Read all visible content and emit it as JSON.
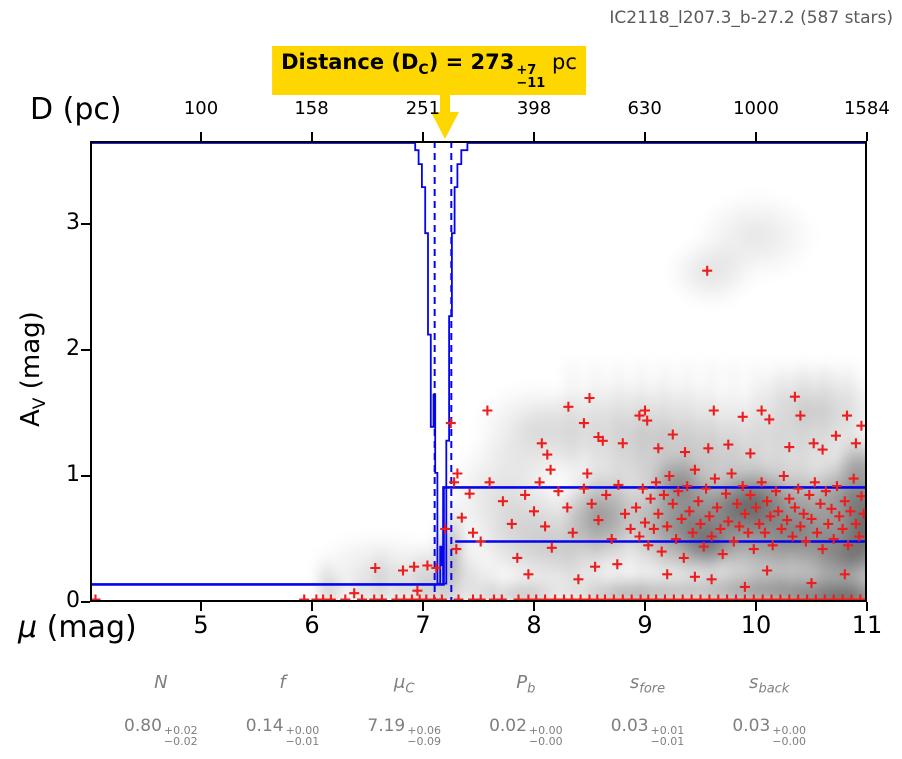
{
  "title": "IC2118_l207.3_b-27.2 (587 stars)",
  "annotation": {
    "prefix": "Distance (D",
    "var_sub": "C",
    "mid": ") = 273",
    "err_plus": "+7",
    "err_minus": "−11",
    "unit": " pc"
  },
  "axes": {
    "top_label": "D (pc)",
    "bottom_label_main": "μ",
    "bottom_label_rest": " (mag)",
    "left_label_main": "A",
    "left_label_sub": "V",
    "left_label_rest": " (mag)"
  },
  "params": [
    {
      "main": "N",
      "sub": "",
      "value": "0.80",
      "plus": "+0.02",
      "minus": "−0.02"
    },
    {
      "main": "f",
      "sub": "",
      "value": "0.14",
      "plus": "+0.00",
      "minus": "−0.01"
    },
    {
      "main": "μ",
      "sub": "C",
      "value": "7.19",
      "plus": "+0.06",
      "minus": "−0.09"
    },
    {
      "main": "P",
      "sub": "b",
      "value": "0.02",
      "plus": "+0.00",
      "minus": "−0.00"
    },
    {
      "main": "s",
      "sub": "fore",
      "value": "0.03",
      "plus": "+0.01",
      "minus": "−0.01"
    },
    {
      "main": "s",
      "sub": "back",
      "value": "0.03",
      "plus": "+0.00",
      "minus": "−0.00"
    }
  ],
  "chart_data": {
    "type": "scatter",
    "title": "IC2118_l207.3_b-27.2 (587 stars)",
    "xlabel": "μ (mag)",
    "ylabel": "A_V (mag)",
    "x2label": "D (pc)",
    "xlim": [
      4,
      11
    ],
    "ylim": [
      0,
      3.66
    ],
    "grid": false,
    "colors": {
      "marker": "#ee1d1d",
      "model": "#0404ee",
      "accent": "#ffd700",
      "text_gray": "#7f7f7f"
    },
    "x_ticks": [
      {
        "label": "5",
        "mu": 5
      },
      {
        "label": "6",
        "mu": 6
      },
      {
        "label": "7",
        "mu": 7
      },
      {
        "label": "8",
        "mu": 8
      },
      {
        "label": "9",
        "mu": 9
      },
      {
        "label": "10",
        "mu": 10
      },
      {
        "label": "11",
        "mu": 11
      }
    ],
    "x2_ticks": [
      {
        "label": "100",
        "mu": 5.0
      },
      {
        "label": "158",
        "mu": 5.996
      },
      {
        "label": "251",
        "mu": 6.999
      },
      {
        "label": "398",
        "mu": 8.0
      },
      {
        "label": "630",
        "mu": 8.997
      },
      {
        "label": "1000",
        "mu": 10.0
      },
      {
        "label": "1584",
        "mu": 10.999
      }
    ],
    "y_ticks": [
      {
        "label": "0",
        "av": 0
      },
      {
        "label": "1",
        "av": 1
      },
      {
        "label": "2",
        "av": 2
      },
      {
        "label": "3",
        "av": 3
      }
    ],
    "distance_pc": {
      "value": 273,
      "plus": 7,
      "minus": 11
    },
    "model": {
      "fore_av": 0.14,
      "mu_c": 7.185,
      "back_av_upper": 0.91,
      "back_av_lower": 0.48,
      "lower_start_mu": 7.29
    },
    "dashed_mu": [
      7.105,
      7.255
    ],
    "posterior": {
      "note": "posterior of mu_C drawn downward from top axis; depth = fraction of plot height",
      "bins": [
        [
          6.93,
          0.02
        ],
        [
          6.96,
          0.05
        ],
        [
          6.99,
          0.1
        ],
        [
          7.02,
          0.2
        ],
        [
          7.045,
          0.42
        ],
        [
          7.07,
          0.62
        ],
        [
          7.095,
          0.55
        ],
        [
          7.11,
          0.72
        ],
        [
          7.13,
          0.96
        ],
        [
          7.155,
          0.88
        ],
        [
          7.17,
          0.92
        ],
        [
          7.185,
          0.96
        ],
        [
          7.21,
          0.65
        ],
        [
          7.235,
          0.38
        ],
        [
          7.26,
          0.2
        ],
        [
          7.285,
          0.1
        ],
        [
          7.31,
          0.05
        ],
        [
          7.345,
          0.02
        ]
      ],
      "end_mu": 7.4
    },
    "scatter": {
      "name": "stars",
      "marker": "+",
      "rug_av": 0.02,
      "rug_mu": [
        4.05,
        5.93,
        6.04,
        6.1,
        6.17,
        6.3,
        6.45,
        6.56,
        6.63,
        6.76,
        6.83,
        6.9,
        6.97,
        7.03,
        7.1,
        7.17,
        7.32,
        7.45,
        7.52,
        7.64,
        7.71,
        7.86,
        7.95,
        8.02,
        8.1,
        8.19,
        8.27,
        8.34,
        8.42,
        8.5,
        8.57,
        8.64,
        8.72,
        8.8,
        8.88,
        8.96,
        9.03,
        9.1,
        9.18,
        9.26,
        9.34,
        9.42,
        9.5,
        9.58,
        9.66,
        9.74,
        9.82,
        9.9,
        9.98,
        10.06,
        10.14,
        10.22,
        10.3,
        10.38,
        10.46,
        10.54,
        10.62,
        10.7,
        10.78,
        10.86,
        10.94
      ],
      "points": [
        [
          6.57,
          0.27
        ],
        [
          6.82,
          0.25
        ],
        [
          7.04,
          0.29
        ],
        [
          6.92,
          0.28
        ],
        [
          7.12,
          0.27
        ],
        [
          6.38,
          0.07
        ],
        [
          6.95,
          0.09
        ],
        [
          7.2,
          0.58
        ],
        [
          7.28,
          0.95
        ],
        [
          7.3,
          0.42
        ],
        [
          7.35,
          0.67
        ],
        [
          7.42,
          0.86
        ],
        [
          7.45,
          0.55
        ],
        [
          7.25,
          1.42
        ],
        [
          7.31,
          1.02
        ],
        [
          7.52,
          0.48
        ],
        [
          7.58,
          1.52
        ],
        [
          7.6,
          0.95
        ],
        [
          7.72,
          0.8
        ],
        [
          7.8,
          0.62
        ],
        [
          7.85,
          0.35
        ],
        [
          7.92,
          0.85
        ],
        [
          7.95,
          0.22
        ],
        [
          8.0,
          0.72
        ],
        [
          8.05,
          0.95
        ],
        [
          8.07,
          1.26
        ],
        [
          8.1,
          0.6
        ],
        [
          8.12,
          1.17
        ],
        [
          8.15,
          1.05
        ],
        [
          8.16,
          0.43
        ],
        [
          8.22,
          0.88
        ],
        [
          8.3,
          0.75
        ],
        [
          8.31,
          1.55
        ],
        [
          8.35,
          0.55
        ],
        [
          8.4,
          0.18
        ],
        [
          8.45,
          0.9
        ],
        [
          8.45,
          1.42
        ],
        [
          8.48,
          1.02
        ],
        [
          8.5,
          1.62
        ],
        [
          8.52,
          0.78
        ],
        [
          8.55,
          0.28
        ],
        [
          8.58,
          0.65
        ],
        [
          8.58,
          1.31
        ],
        [
          8.62,
          1.28
        ],
        [
          8.65,
          0.85
        ],
        [
          8.7,
          0.5
        ],
        [
          8.75,
          0.3
        ],
        [
          8.76,
          0.93
        ],
        [
          8.8,
          1.26
        ],
        [
          8.82,
          0.7
        ],
        [
          8.87,
          0.58
        ],
        [
          8.95,
          1.48
        ],
        [
          9.0,
          1.52
        ],
        [
          9.02,
          1.44
        ],
        [
          9.12,
          1.22
        ],
        [
          9.25,
          1.33
        ],
        [
          9.36,
          1.19
        ],
        [
          9.57,
          1.22
        ],
        [
          9.62,
          1.52
        ],
        [
          9.75,
          1.25
        ],
        [
          9.88,
          1.47
        ],
        [
          9.95,
          1.18
        ],
        [
          10.05,
          1.52
        ],
        [
          10.12,
          1.45
        ],
        [
          10.3,
          1.23
        ],
        [
          10.35,
          1.63
        ],
        [
          10.4,
          1.48
        ],
        [
          10.52,
          1.26
        ],
        [
          10.6,
          1.21
        ],
        [
          10.72,
          1.32
        ],
        [
          10.82,
          1.48
        ],
        [
          10.9,
          1.26
        ],
        [
          10.95,
          1.4
        ],
        [
          9.56,
          2.63
        ],
        [
          9.2,
          0.22
        ],
        [
          9.45,
          0.2
        ],
        [
          9.6,
          0.18
        ],
        [
          9.9,
          0.12
        ],
        [
          10.1,
          0.25
        ],
        [
          10.5,
          0.15
        ],
        [
          10.8,
          0.22
        ],
        [
          8.92,
          0.75
        ],
        [
          8.95,
          0.52
        ],
        [
          8.98,
          0.9
        ],
        [
          9.0,
          0.63
        ],
        [
          9.03,
          0.45
        ],
        [
          9.05,
          0.82
        ],
        [
          9.08,
          0.58
        ],
        [
          9.1,
          0.95
        ],
        [
          9.12,
          0.7
        ],
        [
          9.15,
          0.4
        ],
        [
          9.17,
          0.85
        ],
        [
          9.2,
          0.6
        ],
        [
          9.22,
          1.0
        ],
        [
          9.25,
          0.78
        ],
        [
          9.28,
          0.5
        ],
        [
          9.3,
          0.88
        ],
        [
          9.33,
          0.66
        ],
        [
          9.35,
          0.35
        ],
        [
          9.38,
          0.92
        ],
        [
          9.4,
          0.72
        ],
        [
          9.43,
          0.55
        ],
        [
          9.45,
          1.05
        ],
        [
          9.48,
          0.8
        ],
        [
          9.5,
          0.62
        ],
        [
          9.53,
          0.44
        ],
        [
          9.55,
          0.9
        ],
        [
          9.58,
          0.68
        ],
        [
          9.6,
          0.52
        ],
        [
          9.63,
          0.98
        ],
        [
          9.65,
          0.75
        ],
        [
          9.68,
          0.58
        ],
        [
          9.7,
          0.38
        ],
        [
          9.73,
          0.86
        ],
        [
          9.75,
          0.64
        ],
        [
          9.78,
          1.02
        ],
        [
          9.8,
          0.48
        ],
        [
          9.83,
          0.78
        ],
        [
          9.85,
          0.6
        ],
        [
          9.88,
          0.92
        ],
        [
          9.9,
          0.7
        ],
        [
          9.93,
          0.55
        ],
        [
          9.95,
          0.85
        ],
        [
          9.98,
          0.42
        ],
        [
          10.0,
          0.75
        ],
        [
          10.03,
          0.62
        ],
        [
          10.05,
          0.95
        ],
        [
          10.08,
          0.55
        ],
        [
          10.1,
          0.8
        ],
        [
          10.13,
          0.68
        ],
        [
          10.15,
          0.45
        ],
        [
          10.18,
          0.88
        ],
        [
          10.2,
          0.72
        ],
        [
          10.23,
          0.58
        ],
        [
          10.25,
          1.0
        ],
        [
          10.28,
          0.65
        ],
        [
          10.3,
          0.82
        ],
        [
          10.33,
          0.52
        ],
        [
          10.35,
          0.75
        ],
        [
          10.38,
          0.9
        ],
        [
          10.4,
          0.6
        ],
        [
          10.43,
          0.7
        ],
        [
          10.45,
          0.48
        ],
        [
          10.48,
          0.85
        ],
        [
          10.5,
          0.66
        ],
        [
          10.53,
          0.95
        ],
        [
          10.55,
          0.55
        ],
        [
          10.58,
          0.78
        ],
        [
          10.6,
          0.42
        ],
        [
          10.63,
          0.88
        ],
        [
          10.65,
          0.62
        ],
        [
          10.68,
          0.74
        ],
        [
          10.7,
          0.5
        ],
        [
          10.73,
          0.92
        ],
        [
          10.75,
          0.68
        ],
        [
          10.78,
          0.58
        ],
        [
          10.8,
          0.8
        ],
        [
          10.83,
          0.45
        ],
        [
          10.85,
          0.72
        ],
        [
          10.88,
          0.98
        ],
        [
          10.9,
          0.62
        ],
        [
          10.93,
          0.52
        ],
        [
          10.95,
          0.84
        ],
        [
          10.97,
          0.7
        ]
      ]
    },
    "density_blobs": [
      [
        9.8,
        0.75,
        2.0,
        0.95,
        0.3
      ],
      [
        10.35,
        0.55,
        1.1,
        0.6,
        0.4
      ],
      [
        9.4,
        0.6,
        0.75,
        0.5,
        0.38
      ],
      [
        10.85,
        0.35,
        0.55,
        0.45,
        0.45
      ],
      [
        10.9,
        0.85,
        0.5,
        0.4,
        0.4
      ],
      [
        9.95,
        0.8,
        0.45,
        0.35,
        0.4
      ],
      [
        8.6,
        0.7,
        0.45,
        0.45,
        0.35
      ],
      [
        8.2,
        0.45,
        0.9,
        0.55,
        0.22
      ],
      [
        7.75,
        0.8,
        0.7,
        0.7,
        0.15
      ],
      [
        9.0,
        1.35,
        1.6,
        0.55,
        0.18
      ],
      [
        10.5,
        1.5,
        0.9,
        0.5,
        0.2
      ],
      [
        8.0,
        1.35,
        0.7,
        0.5,
        0.12
      ],
      [
        9.6,
        2.62,
        0.5,
        0.35,
        0.12
      ],
      [
        10.0,
        2.9,
        0.7,
        0.45,
        0.1
      ],
      [
        10.2,
        0.08,
        1.5,
        0.22,
        0.45
      ],
      [
        8.9,
        0.07,
        0.9,
        0.18,
        0.35
      ],
      [
        7.9,
        0.06,
        0.6,
        0.15,
        0.28
      ],
      [
        6.12,
        0.1,
        0.05,
        0.35,
        0.45
      ],
      [
        6.22,
        0.08,
        0.04,
        0.25,
        0.35
      ],
      [
        6.45,
        0.07,
        0.05,
        0.28,
        0.3
      ],
      [
        6.62,
        0.12,
        0.05,
        0.42,
        0.4
      ],
      [
        6.8,
        0.1,
        0.05,
        0.35,
        0.35
      ],
      [
        6.95,
        0.12,
        0.05,
        0.45,
        0.4
      ],
      [
        7.05,
        0.12,
        0.05,
        0.5,
        0.45
      ],
      [
        7.17,
        0.15,
        0.06,
        0.55,
        0.5
      ],
      [
        7.3,
        0.2,
        0.08,
        0.6,
        0.4
      ],
      [
        7.45,
        0.15,
        0.06,
        0.45,
        0.35
      ],
      [
        7.6,
        0.1,
        0.06,
        0.35,
        0.3
      ],
      [
        6.6,
        0.25,
        0.8,
        0.4,
        0.1
      ],
      [
        7.25,
        0.45,
        0.15,
        0.5,
        0.25
      ],
      [
        11.0,
        0.6,
        0.3,
        0.5,
        0.5
      ],
      [
        10.95,
        1.1,
        0.3,
        0.3,
        0.35
      ],
      [
        9.3,
        0.95,
        0.35,
        0.3,
        0.35
      ],
      [
        9.55,
        0.45,
        0.3,
        0.25,
        0.35
      ],
      [
        10.8,
        0.0,
        0.8,
        0.25,
        0.55
      ]
    ]
  }
}
